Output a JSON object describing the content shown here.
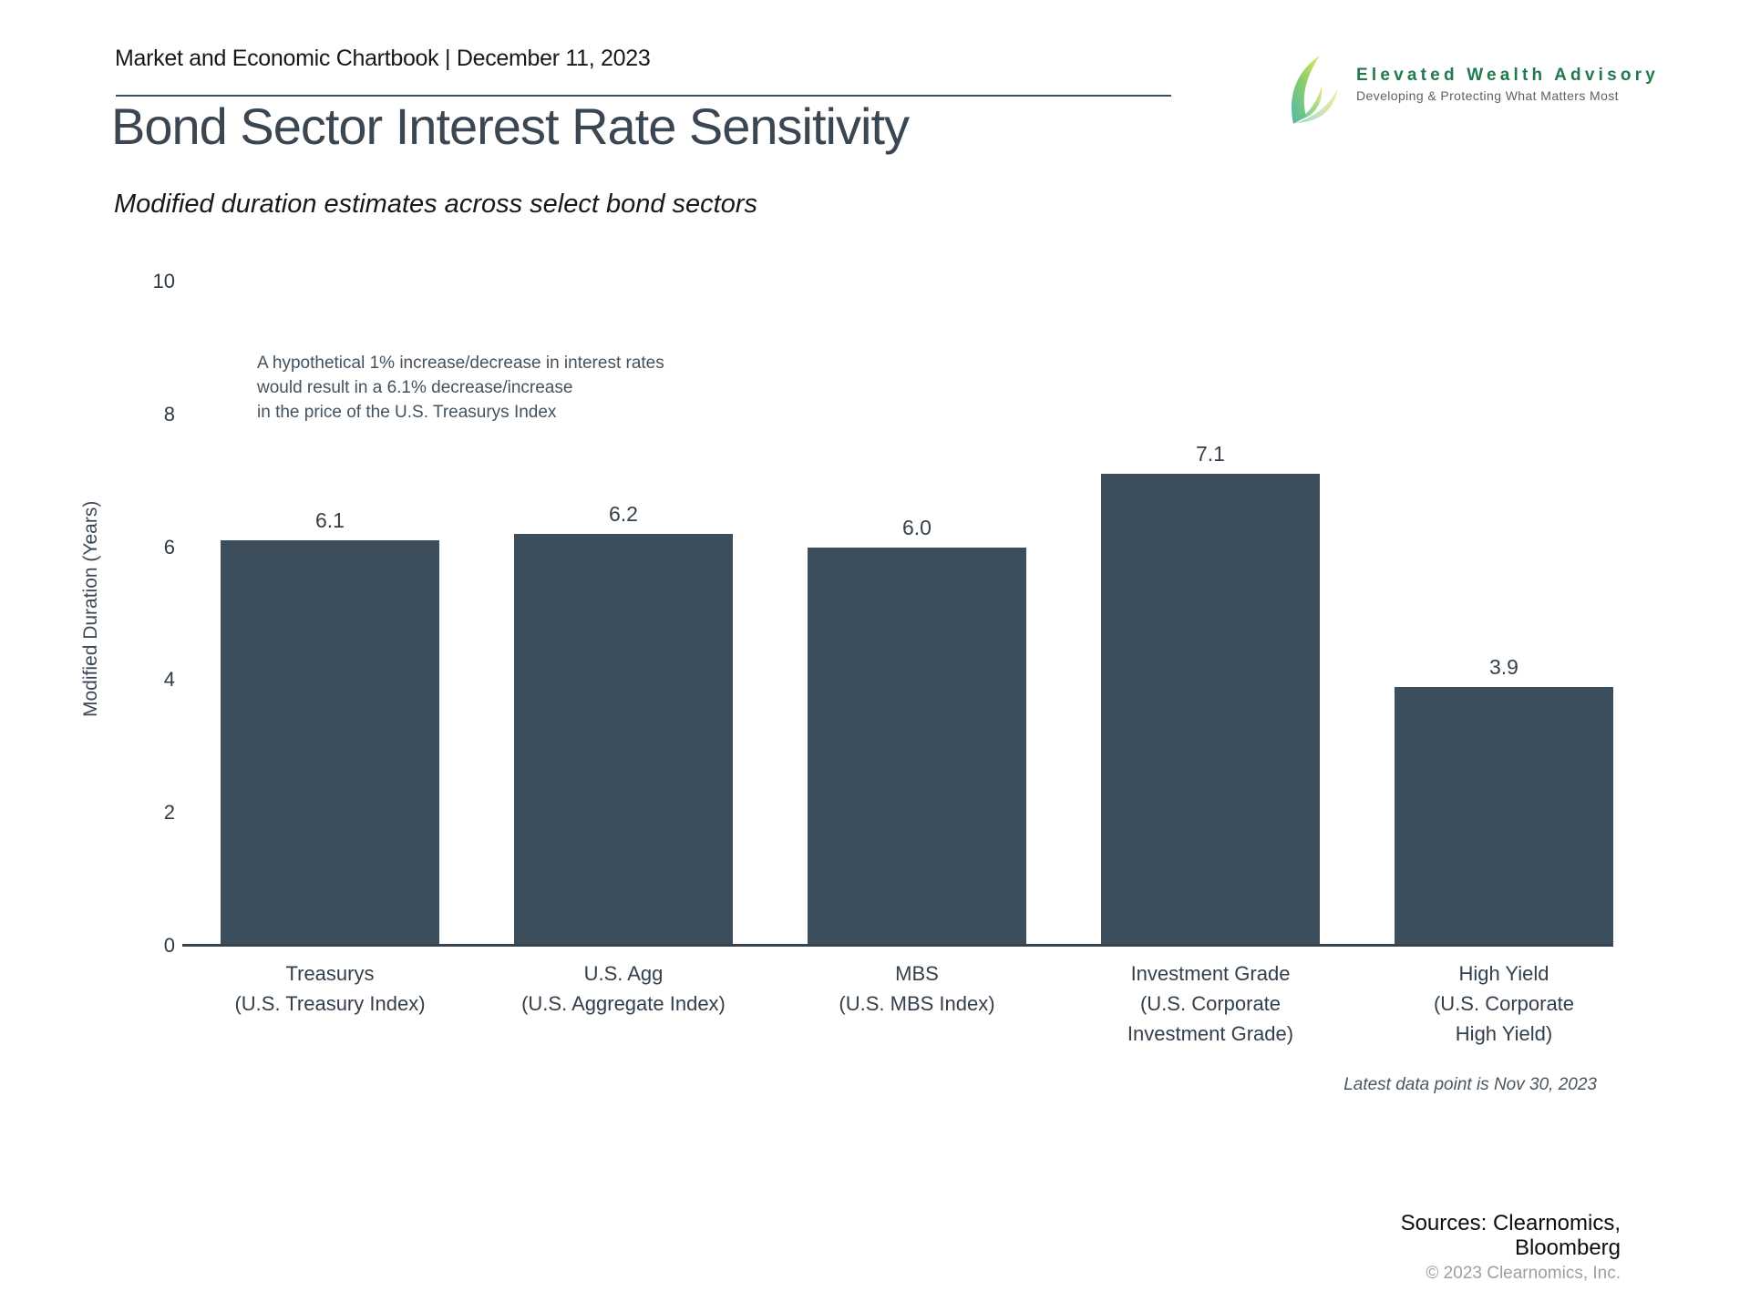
{
  "header": {
    "title": "Market and Economic Chartbook | December 11, 2023"
  },
  "logo": {
    "name": "Elevated Wealth Advisory",
    "tagline": "Developing & Protecting What Matters Most",
    "brand_green": "#1f7a4e"
  },
  "page": {
    "title": "Bond Sector Interest Rate Sensitivity",
    "subtitle": "Modified duration estimates across select bond sectors"
  },
  "annotation": {
    "lines": [
      "A hypothetical 1% increase/decrease in interest rates",
      "would result in a 6.1% decrease/increase",
      "in the price of the U.S. Treasurys Index"
    ]
  },
  "chart_data": {
    "type": "bar",
    "title": "Bond Sector Interest Rate Sensitivity",
    "subtitle": "Modified duration estimates across select bond sectors",
    "categories": [
      "Treasurys",
      "U.S. Agg",
      "MBS",
      "Investment Grade",
      "High Yield"
    ],
    "category_sublabels": [
      [
        "(U.S. Treasury Index)"
      ],
      [
        "(U.S. Aggregate Index)"
      ],
      [
        "(U.S. MBS Index)"
      ],
      [
        "(U.S. Corporate",
        "Investment Grade)"
      ],
      [
        "(U.S. Corporate",
        "High Yield)"
      ]
    ],
    "values": [
      6.1,
      6.2,
      6.0,
      7.1,
      3.9
    ],
    "value_labels": [
      "6.1",
      "6.2",
      "6.0",
      "7.1",
      "3.9"
    ],
    "xlabel": "",
    "ylabel": "Modified Duration (Years)",
    "ylim": [
      0,
      10
    ],
    "yticks": [
      0,
      2,
      4,
      6,
      8,
      10
    ],
    "grid": false,
    "legend_position": "none",
    "bar_color": "#3c4e5c"
  },
  "footnotes": {
    "latest": "Latest data point is Nov 30, 2023",
    "sources_lines": [
      "Sources: Clearnomics,",
      "Bloomberg"
    ],
    "copyright": "© 2023 Clearnomics, Inc."
  }
}
